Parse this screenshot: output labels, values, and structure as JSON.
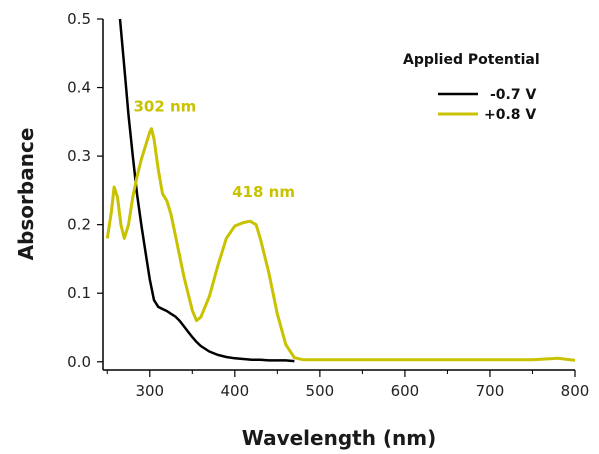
{
  "chart_data": {
    "type": "line",
    "title": "",
    "xlabel": "Wavelength (nm)",
    "ylabel": "Absorbance",
    "xlim": [
      245,
      800
    ],
    "ylim": [
      -0.012,
      0.5
    ],
    "x_ticks": [
      300,
      400,
      500,
      600,
      700,
      800
    ],
    "x_tick_labels": [
      "300",
      "400",
      "500",
      "600",
      "700",
      "800"
    ],
    "y_ticks": [
      0.0,
      0.1,
      0.2,
      0.3,
      0.4,
      0.5
    ],
    "y_tick_labels": [
      "0.0",
      "0.1",
      "0.2",
      "0.3",
      "0.4",
      "0.5"
    ],
    "grid": false,
    "legend": {
      "title": "Applied Potential",
      "placement": "top-right"
    },
    "series": [
      {
        "name": "-0.7 V",
        "color": "#000000",
        "x": [
          265,
          270,
          275,
          280,
          285,
          290,
          295,
          300,
          305,
          310,
          315,
          320,
          325,
          330,
          335,
          340,
          345,
          350,
          355,
          360,
          370,
          380,
          390,
          400,
          410,
          420,
          430,
          440,
          450,
          460,
          470
        ],
        "y": [
          0.5,
          0.43,
          0.36,
          0.3,
          0.245,
          0.2,
          0.16,
          0.12,
          0.09,
          0.08,
          0.077,
          0.074,
          0.07,
          0.066,
          0.06,
          0.052,
          0.044,
          0.036,
          0.029,
          0.023,
          0.015,
          0.01,
          0.007,
          0.005,
          0.004,
          0.003,
          0.003,
          0.002,
          0.002,
          0.002,
          0.001
        ]
      },
      {
        "name": "+0.8 V",
        "color": "#c9c200",
        "x": [
          250,
          255,
          258,
          262,
          266,
          270,
          275,
          280,
          285,
          290,
          295,
          300,
          302,
          305,
          310,
          315,
          320,
          325,
          330,
          340,
          350,
          355,
          360,
          370,
          380,
          390,
          400,
          410,
          418,
          425,
          430,
          440,
          450,
          460,
          470,
          480,
          490,
          500,
          550,
          600,
          650,
          700,
          750,
          780,
          800
        ],
        "y": [
          0.18,
          0.22,
          0.255,
          0.24,
          0.2,
          0.18,
          0.2,
          0.24,
          0.27,
          0.295,
          0.315,
          0.335,
          0.34,
          0.325,
          0.28,
          0.245,
          0.235,
          0.215,
          0.185,
          0.125,
          0.075,
          0.06,
          0.065,
          0.095,
          0.14,
          0.18,
          0.198,
          0.203,
          0.205,
          0.2,
          0.18,
          0.13,
          0.07,
          0.025,
          0.006,
          0.003,
          0.003,
          0.003,
          0.003,
          0.003,
          0.003,
          0.003,
          0.003,
          0.005,
          0.002
        ]
      }
    ],
    "annotations": [
      {
        "text": "302 nm",
        "x": 302,
        "y": 0.345,
        "series": 1
      },
      {
        "text": "418 nm",
        "x": 418,
        "y": 0.22,
        "series": 1
      }
    ]
  }
}
